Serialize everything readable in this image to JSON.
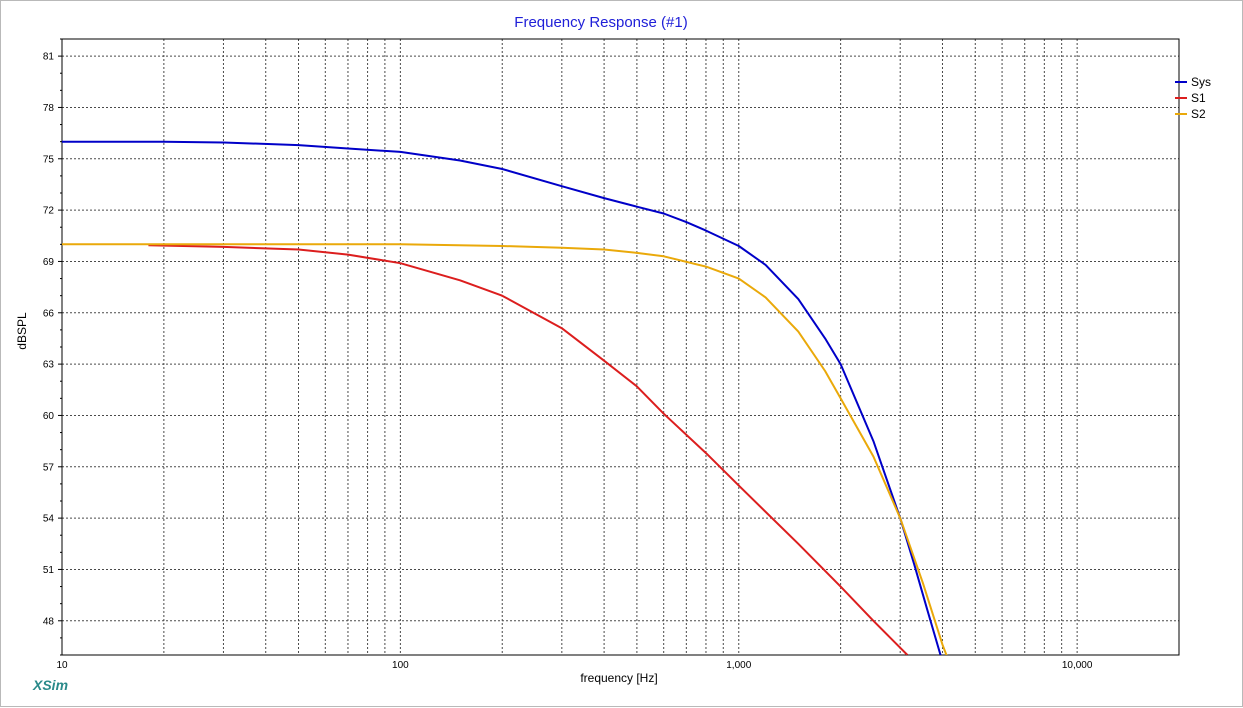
{
  "chart_data": {
    "type": "line",
    "title": "Frequency Response (#1)",
    "xlabel": "frequency [Hz]",
    "ylabel": "dBSPL",
    "x_scale": "log",
    "xlim": [
      10,
      20000
    ],
    "ylim": [
      46,
      82
    ],
    "x_tick_labels": [
      {
        "value": 10,
        "label": "10"
      },
      {
        "value": 100,
        "label": "100"
      },
      {
        "value": 1000,
        "label": "1,000"
      },
      {
        "value": 10000,
        "label": "10,000"
      }
    ],
    "y_ticks": [
      48,
      51,
      54,
      57,
      60,
      63,
      66,
      69,
      72,
      75,
      78,
      81
    ],
    "grid": true,
    "legend_position": "right",
    "series": [
      {
        "name": "Sys",
        "color": "#0000c8",
        "points": [
          [
            10,
            76.0
          ],
          [
            20,
            76.0
          ],
          [
            30,
            75.95
          ],
          [
            50,
            75.8
          ],
          [
            70,
            75.6
          ],
          [
            100,
            75.4
          ],
          [
            150,
            74.9
          ],
          [
            200,
            74.4
          ],
          [
            300,
            73.4
          ],
          [
            400,
            72.7
          ],
          [
            500,
            72.2
          ],
          [
            600,
            71.8
          ],
          [
            700,
            71.3
          ],
          [
            800,
            70.8
          ],
          [
            1000,
            69.9
          ],
          [
            1200,
            68.8
          ],
          [
            1500,
            66.8
          ],
          [
            1800,
            64.5
          ],
          [
            2000,
            63.0
          ],
          [
            2500,
            58.5
          ],
          [
            3000,
            54.0
          ],
          [
            3300,
            51.3
          ],
          [
            3600,
            48.7
          ],
          [
            4000,
            45.6
          ]
        ]
      },
      {
        "name": "S1",
        "color": "#dc1e1e",
        "points": [
          [
            18,
            69.95
          ],
          [
            30,
            69.85
          ],
          [
            50,
            69.7
          ],
          [
            70,
            69.4
          ],
          [
            100,
            68.9
          ],
          [
            150,
            67.9
          ],
          [
            200,
            67.0
          ],
          [
            300,
            65.1
          ],
          [
            400,
            63.2
          ],
          [
            500,
            61.7
          ],
          [
            600,
            60.1
          ],
          [
            800,
            57.8
          ],
          [
            1000,
            55.9
          ],
          [
            1500,
            52.5
          ],
          [
            2000,
            50.0
          ],
          [
            2500,
            48.0
          ],
          [
            3150,
            46.0
          ]
        ]
      },
      {
        "name": "S2",
        "color": "#eaa90a",
        "points": [
          [
            10,
            70.0
          ],
          [
            50,
            70.0
          ],
          [
            100,
            70.0
          ],
          [
            200,
            69.9
          ],
          [
            300,
            69.8
          ],
          [
            400,
            69.7
          ],
          [
            500,
            69.5
          ],
          [
            600,
            69.3
          ],
          [
            800,
            68.7
          ],
          [
            1000,
            68.0
          ],
          [
            1200,
            66.9
          ],
          [
            1500,
            64.9
          ],
          [
            1800,
            62.6
          ],
          [
            2000,
            61.0
          ],
          [
            2500,
            57.6
          ],
          [
            3000,
            54.0
          ],
          [
            3500,
            50.2
          ],
          [
            4000,
            46.6
          ],
          [
            4200,
            45.5
          ]
        ]
      }
    ]
  },
  "branding": {
    "app_name": "XSim"
  }
}
